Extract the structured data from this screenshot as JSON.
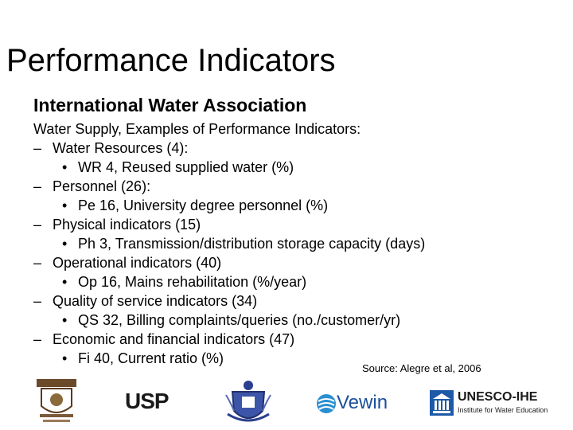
{
  "slide": {
    "title": "Performance Indicators",
    "subtitle": "International Water Association",
    "intro": "Water Supply, Examples of Performance Indicators:",
    "dash_glyph": "–",
    "bullet_glyph": "•",
    "categories": [
      {
        "label": "Water Resources (4):",
        "example": "WR 4, Reused supplied water (%)"
      },
      {
        "label": "Personnel (26):",
        "example": "Pe 16, University degree personnel (%)"
      },
      {
        "label": "Physical indicators (15)",
        "example": "Ph 3, Transmission/distribution storage capacity (days)"
      },
      {
        "label": "Operational indicators (40)",
        "example": "Op 16, Mains rehabilitation (%/year)"
      },
      {
        "label": "Quality of service indicators (34)",
        "example": "QS 32, Billing complaints/queries (no./customer/yr)"
      },
      {
        "label": "Economic and financial indicators (47)",
        "example": "Fi 40, Current ratio (%)"
      }
    ],
    "source": "Source: Alegre et al, 2006"
  },
  "logos": {
    "usp": "USP",
    "vewin": "Vewin",
    "unesco_name": "UNESCO-IHE",
    "unesco_tagline": "Institute for Water Education"
  },
  "colors": {
    "text": "#000000",
    "vewin_blue": "#1b4f9c",
    "unesco_blue": "#1d5aa8",
    "crest_blue": "#2a3f8f"
  }
}
